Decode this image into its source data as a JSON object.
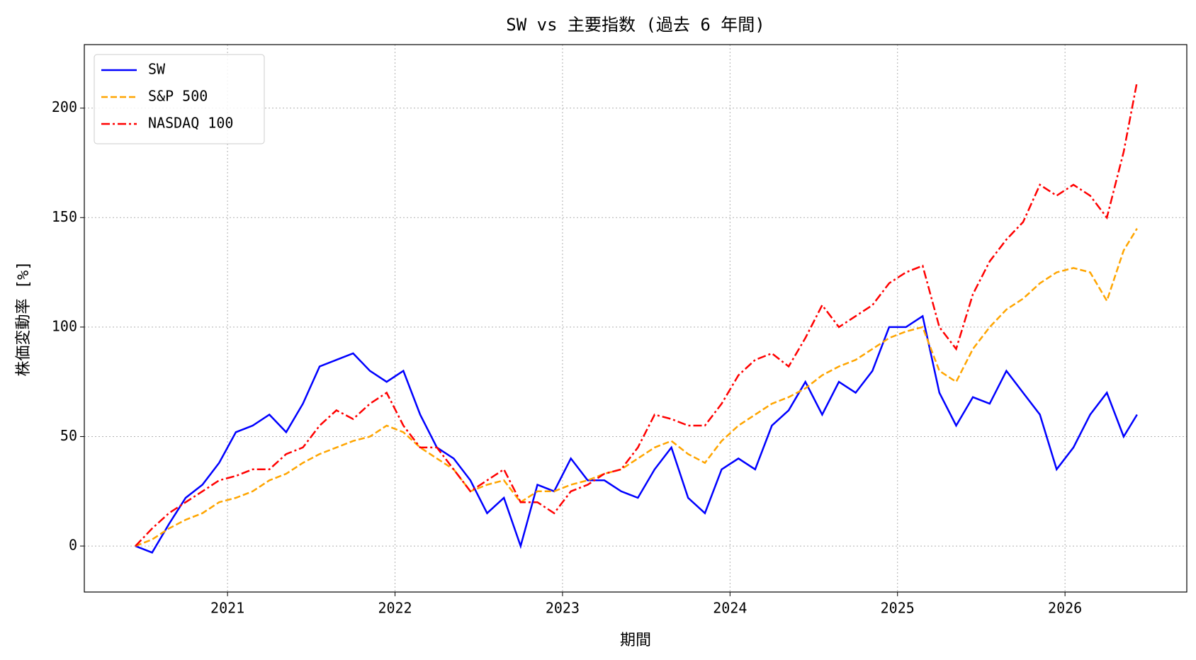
{
  "chart_data": {
    "type": "line",
    "title": "SW vs 主要指数 (過去 6 年間)",
    "x_label": "期間",
    "y_label": "株価変動率 [%]",
    "x": [
      2020.45,
      2020.55,
      2020.65,
      2020.75,
      2020.85,
      2020.95,
      2021.05,
      2021.15,
      2021.25,
      2021.35,
      2021.45,
      2021.55,
      2021.65,
      2021.75,
      2021.85,
      2021.95,
      2022.05,
      2022.15,
      2022.25,
      2022.35,
      2022.45,
      2022.55,
      2022.65,
      2022.75,
      2022.85,
      2022.95,
      2023.05,
      2023.15,
      2023.25,
      2023.35,
      2023.45,
      2023.55,
      2023.65,
      2023.75,
      2023.85,
      2023.95,
      2024.05,
      2024.15,
      2024.25,
      2024.35,
      2024.45,
      2024.55,
      2024.65,
      2024.75,
      2024.85,
      2024.95,
      2025.05,
      2025.15,
      2025.25,
      2025.35,
      2025.45,
      2025.55,
      2025.65,
      2025.75,
      2025.85,
      2025.95,
      2026.05,
      2026.15,
      2026.25,
      2026.35,
      2026.43
    ],
    "series": [
      {
        "name": "SW",
        "color": "#0000ff",
        "dash": "solid",
        "values": [
          0,
          -3,
          10,
          22,
          28,
          38,
          52,
          55,
          60,
          52,
          65,
          82,
          85,
          88,
          80,
          75,
          80,
          60,
          45,
          40,
          30,
          15,
          22,
          0,
          28,
          25,
          40,
          30,
          30,
          25,
          22,
          35,
          45,
          22,
          15,
          35,
          40,
          35,
          55,
          62,
          75,
          60,
          75,
          70,
          80,
          100,
          100,
          105,
          70,
          55,
          68,
          65,
          80,
          70,
          60,
          35,
          45,
          60,
          70,
          50,
          60
        ]
      },
      {
        "name": "S&P 500",
        "color": "#ffa500",
        "dash": "dashed",
        "values": [
          0,
          3,
          8,
          12,
          15,
          20,
          22,
          25,
          30,
          33,
          38,
          42,
          45,
          48,
          50,
          55,
          52,
          45,
          40,
          35,
          25,
          28,
          30,
          20,
          25,
          25,
          28,
          30,
          33,
          35,
          40,
          45,
          48,
          42,
          38,
          48,
          55,
          60,
          65,
          68,
          72,
          78,
          82,
          85,
          90,
          95,
          98,
          100,
          80,
          75,
          90,
          100,
          108,
          113,
          120,
          125,
          127,
          125,
          112,
          135,
          145
        ]
      },
      {
        "name": "NASDAQ 100",
        "color": "#ff0000",
        "dash": "dashdot",
        "values": [
          0,
          8,
          15,
          20,
          25,
          30,
          32,
          35,
          35,
          42,
          45,
          55,
          62,
          58,
          65,
          70,
          55,
          45,
          45,
          35,
          25,
          30,
          35,
          20,
          20,
          15,
          25,
          28,
          33,
          35,
          45,
          60,
          58,
          55,
          55,
          65,
          78,
          85,
          88,
          82,
          95,
          110,
          100,
          105,
          110,
          120,
          125,
          128,
          100,
          90,
          115,
          130,
          140,
          148,
          165,
          160,
          165,
          160,
          150,
          180,
          212
        ]
      }
    ],
    "xlim": [
      2020.145,
      2026.727
    ],
    "ylim": [
      -21,
      229
    ],
    "xticks": [
      2021,
      2022,
      2023,
      2024,
      2025,
      2026
    ],
    "yticks": [
      0,
      50,
      100,
      150,
      200
    ],
    "grid": true,
    "legend": "upper left"
  }
}
